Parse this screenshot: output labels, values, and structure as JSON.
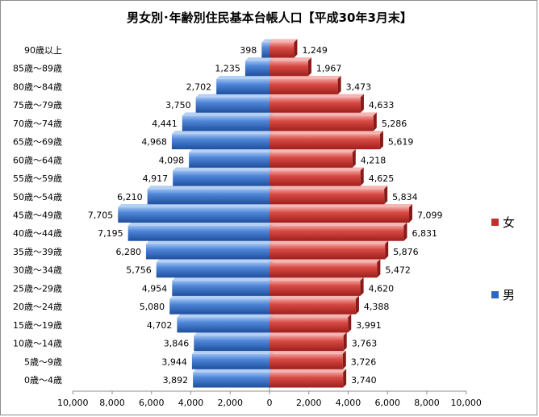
{
  "chart_data": {
    "type": "bar",
    "orientation": "horizontal",
    "title": "男女別･年齢別住民基本台帳人口【平成30年3月末】",
    "categories": [
      "0歳～4歳",
      "5歳～9歳",
      "10歳～14歳",
      "15歳～19歳",
      "20歳～24歳",
      "25歳～29歳",
      "30歳～34歳",
      "35歳～39歳",
      "40歳～44歳",
      "45歳～49歳",
      "50歳～54歳",
      "55歳～59歳",
      "60歳～64歳",
      "65歳～69歳",
      "70歳～74歳",
      "75歳～79歳",
      "80歳～84歳",
      "85歳～89歳",
      "90歳以上"
    ],
    "series": [
      {
        "name": "男",
        "color": "#3a6fc4",
        "values": [
          3892,
          3944,
          3846,
          4702,
          5080,
          4954,
          5756,
          6280,
          7195,
          7705,
          6210,
          4917,
          4098,
          4968,
          4441,
          3750,
          2702,
          1235,
          398
        ]
      },
      {
        "name": "女",
        "color": "#d03a36",
        "values": [
          3740,
          3726,
          3763,
          3991,
          4388,
          4620,
          5472,
          5876,
          6831,
          7099,
          5834,
          4625,
          4218,
          5619,
          5286,
          4633,
          3473,
          1967,
          1249
        ]
      }
    ],
    "xlim": [
      -10000,
      10000
    ],
    "xticks": [
      "10,000",
      "8,000",
      "6,000",
      "4,000",
      "2,000",
      "0",
      "2,000",
      "4,000",
      "6,000",
      "8,000",
      "10,000"
    ],
    "grid": false,
    "legend_position": "right"
  },
  "legend": {
    "female_label": "女",
    "male_label": "男",
    "female_color": "#c0302c",
    "male_color": "#2f67c0"
  }
}
